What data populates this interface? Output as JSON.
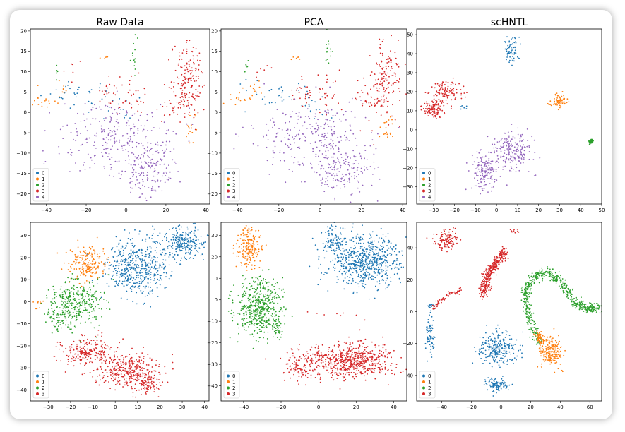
{
  "figure": {
    "colors": [
      "#1f77b4",
      "#ff7f0e",
      "#2ca02c",
      "#d62728",
      "#9467bd"
    ]
  },
  "chart_data": [
    {
      "type": "scatter",
      "title": "Raw Data",
      "xlim": [
        -48,
        42
      ],
      "ylim": [
        -22.5,
        20.5
      ],
      "xticks": [
        -40,
        -20,
        0,
        20,
        40
      ],
      "yticks": [
        -20,
        -15,
        -10,
        -5,
        0,
        5,
        10,
        15,
        20
      ],
      "legend": {
        "position": "lower-left",
        "labels": [
          "0",
          "1",
          "2",
          "3",
          "4"
        ]
      },
      "clusters": [
        {
          "label": "0",
          "cx": -22,
          "cy": 4,
          "sx": 11,
          "sy": 1.8,
          "n": 35
        },
        {
          "label": "0",
          "cx": -4,
          "cy": 1,
          "sx": 5,
          "sy": 1.5,
          "n": 15
        },
        {
          "label": "1",
          "cx": -42,
          "cy": 3,
          "sx": 4,
          "sy": 1.2,
          "n": 18
        },
        {
          "label": "1",
          "cx": -32,
          "cy": 6,
          "sx": 1.5,
          "sy": 1.2,
          "n": 8
        },
        {
          "label": "1",
          "cx": -11,
          "cy": 13.5,
          "sx": 1.2,
          "sy": 0.4,
          "n": 6
        },
        {
          "label": "1",
          "cx": 33,
          "cy": -4,
          "sx": 2,
          "sy": 1.5,
          "n": 18
        },
        {
          "label": "2",
          "cx": 4,
          "cy": 15.5,
          "sx": 0.8,
          "sy": 2.5,
          "n": 14
        },
        {
          "label": "2",
          "cx": -35,
          "cy": 11,
          "sx": 0.7,
          "sy": 1.2,
          "n": 6
        },
        {
          "label": "3",
          "cx": 31,
          "cy": 8,
          "sx": 4,
          "sy": 5,
          "n": 170
        },
        {
          "label": "3",
          "cx": -8,
          "cy": 5,
          "sx": 3,
          "sy": 2,
          "n": 25
        },
        {
          "label": "3",
          "cx": 4,
          "cy": 4,
          "sx": 3,
          "sy": 2.5,
          "n": 25
        },
        {
          "label": "3",
          "cx": 22,
          "cy": 2,
          "sx": 3,
          "sy": 2.5,
          "n": 20
        },
        {
          "label": "3",
          "cx": -27,
          "cy": 11,
          "sx": 2,
          "sy": 1.2,
          "n": 6
        },
        {
          "label": "4",
          "cx": -5,
          "cy": -6,
          "sx": 15,
          "sy": 4,
          "n": 260
        },
        {
          "label": "4",
          "cx": 10,
          "cy": -14,
          "sx": 7,
          "sy": 3,
          "n": 170
        }
      ]
    },
    {
      "type": "scatter",
      "title": "PCA",
      "xlim": [
        -48,
        42
      ],
      "ylim": [
        -22.5,
        20.5
      ],
      "xticks": [
        -40,
        -20,
        0,
        20,
        40
      ],
      "yticks": [
        -20,
        -15,
        -10,
        -5,
        0,
        5,
        10,
        15,
        20
      ],
      "legend": {
        "position": "lower-left",
        "labels": [
          "0",
          "1",
          "2",
          "3",
          "4"
        ]
      },
      "clusters": [
        {
          "label": "0",
          "cx": -22,
          "cy": 4,
          "sx": 11,
          "sy": 1.8,
          "n": 35
        },
        {
          "label": "0",
          "cx": -4,
          "cy": 1,
          "sx": 5,
          "sy": 1.5,
          "n": 15
        },
        {
          "label": "1",
          "cx": -42,
          "cy": 3,
          "sx": 4,
          "sy": 1.2,
          "n": 18
        },
        {
          "label": "1",
          "cx": -32,
          "cy": 6,
          "sx": 1.5,
          "sy": 1.2,
          "n": 8
        },
        {
          "label": "1",
          "cx": -11,
          "cy": 13.5,
          "sx": 1.2,
          "sy": 0.4,
          "n": 6
        },
        {
          "label": "1",
          "cx": 33,
          "cy": -4,
          "sx": 2,
          "sy": 1.5,
          "n": 18
        },
        {
          "label": "2",
          "cx": 4,
          "cy": 15.5,
          "sx": 0.8,
          "sy": 2.5,
          "n": 14
        },
        {
          "label": "2",
          "cx": -35,
          "cy": 11,
          "sx": 0.7,
          "sy": 1.2,
          "n": 6
        },
        {
          "label": "3",
          "cx": 31,
          "cy": 8,
          "sx": 4,
          "sy": 5,
          "n": 170
        },
        {
          "label": "3",
          "cx": -8,
          "cy": 5,
          "sx": 3,
          "sy": 2,
          "n": 25
        },
        {
          "label": "3",
          "cx": 4,
          "cy": 4,
          "sx": 3,
          "sy": 2.5,
          "n": 25
        },
        {
          "label": "3",
          "cx": 22,
          "cy": 2,
          "sx": 3,
          "sy": 2.5,
          "n": 20
        },
        {
          "label": "3",
          "cx": -27,
          "cy": 11,
          "sx": 2,
          "sy": 1.2,
          "n": 6
        },
        {
          "label": "4",
          "cx": -5,
          "cy": -6,
          "sx": 15,
          "sy": 4,
          "n": 260
        },
        {
          "label": "4",
          "cx": 10,
          "cy": -14,
          "sx": 7,
          "sy": 3,
          "n": 170
        }
      ]
    },
    {
      "type": "scatter",
      "title": "scHNTL",
      "xlim": [
        -38,
        50
      ],
      "ylim": [
        -39,
        53
      ],
      "xticks": [
        -30,
        -20,
        -10,
        0,
        10,
        20,
        30,
        40,
        50
      ],
      "yticks": [
        -30,
        -20,
        -10,
        0,
        10,
        20,
        30,
        40,
        50
      ],
      "legend": {
        "position": "lower-left",
        "labels": [
          "0",
          "1",
          "2",
          "3",
          "4"
        ]
      },
      "clusters": [
        {
          "label": "0",
          "cx": 7,
          "cy": 42,
          "sx": 1.8,
          "sy": 3.5,
          "n": 70
        },
        {
          "label": "0",
          "cx": -16,
          "cy": 12,
          "sx": 1,
          "sy": 0.8,
          "n": 6
        },
        {
          "label": "1",
          "cx": 30,
          "cy": 15,
          "sx": 1.8,
          "sy": 2,
          "n": 70
        },
        {
          "label": "1",
          "cx": 26,
          "cy": 13,
          "sx": 0.8,
          "sy": 0.5,
          "n": 6
        },
        {
          "label": "2",
          "cx": 45,
          "cy": -6,
          "sx": 0.5,
          "sy": 0.6,
          "n": 50
        },
        {
          "label": "3",
          "cx": -24,
          "cy": 20,
          "sx": 4,
          "sy": 2.8,
          "n": 110
        },
        {
          "label": "3",
          "cx": -30,
          "cy": 11,
          "sx": 3,
          "sy": 2.5,
          "n": 110
        },
        {
          "label": "4",
          "cx": 8,
          "cy": -12,
          "sx": 4.5,
          "sy": 5,
          "n": 200
        },
        {
          "label": "4",
          "cx": -5,
          "cy": -22,
          "sx": 3.2,
          "sy": 5.5,
          "n": 160
        }
      ]
    },
    {
      "type": "scatter",
      "title": "",
      "xlim": [
        -38,
        42
      ],
      "ylim": [
        -45,
        36
      ],
      "xticks": [
        -30,
        -20,
        -10,
        0,
        10,
        20,
        30,
        40
      ],
      "yticks": [
        -40,
        -30,
        -20,
        -10,
        0,
        10,
        20,
        30
      ],
      "legend": {
        "position": "lower-left",
        "labels": [
          "0",
          "1",
          "2",
          "3"
        ]
      },
      "clusters": [
        {
          "label": "0",
          "cx": 31,
          "cy": 27,
          "sx": 5,
          "sy": 3.5,
          "n": 250
        },
        {
          "label": "0",
          "cx": 10,
          "cy": 16,
          "sx": 7,
          "sy": 6.5,
          "n": 500
        },
        {
          "label": "1",
          "cx": -13,
          "cy": 17,
          "sx": 4,
          "sy": 4,
          "n": 200
        },
        {
          "label": "1",
          "cx": -34,
          "cy": -1,
          "sx": 1.5,
          "sy": 1.5,
          "n": 10
        },
        {
          "label": "2",
          "cx": -17,
          "cy": 0,
          "sx": 6,
          "sy": 5,
          "n": 320
        },
        {
          "label": "2",
          "cx": -25,
          "cy": -8,
          "sx": 3,
          "sy": 3,
          "n": 60
        },
        {
          "label": "3",
          "cx": -12,
          "cy": -23,
          "sx": 6,
          "sy": 3.5,
          "n": 230
        },
        {
          "label": "3",
          "cx": 6,
          "cy": -31,
          "sx": 7,
          "sy": 4,
          "n": 340
        },
        {
          "label": "3",
          "cx": 14,
          "cy": -38,
          "sx": 3,
          "sy": 2.5,
          "n": 80
        }
      ]
    },
    {
      "type": "scatter",
      "title": "",
      "xlim": [
        -52,
        47
      ],
      "ylim": [
        -47,
        36
      ],
      "xticks": [
        -40,
        -20,
        0,
        20,
        40
      ],
      "yticks": [
        -40,
        -30,
        -20,
        -10,
        0,
        10,
        20,
        30
      ],
      "legend": {
        "position": "lower-left",
        "labels": [
          "0",
          "1",
          "2",
          "3"
        ]
      },
      "clusters": [
        {
          "label": "0",
          "cx": 25,
          "cy": 18,
          "sx": 10,
          "sy": 6,
          "n": 650
        },
        {
          "label": "0",
          "cx": 8,
          "cy": 28,
          "sx": 3,
          "sy": 3,
          "n": 80
        },
        {
          "label": "1",
          "cx": -37,
          "cy": 24,
          "sx": 3.5,
          "sy": 4.5,
          "n": 200
        },
        {
          "label": "2",
          "cx": -32,
          "cy": -3,
          "sx": 6,
          "sy": 6.5,
          "n": 500
        },
        {
          "label": "2",
          "cx": -22,
          "cy": -13,
          "sx": 2,
          "sy": 2.5,
          "n": 40
        },
        {
          "label": "3",
          "cx": 15,
          "cy": -28,
          "sx": 12,
          "sy": 4,
          "n": 650
        },
        {
          "label": "3",
          "cx": -10,
          "cy": -32,
          "sx": 4,
          "sy": 3,
          "n": 80
        },
        {
          "label": "3",
          "cx": 10,
          "cy": -6,
          "sx": 8,
          "sy": 1,
          "n": 8
        }
      ]
    },
    {
      "type": "scatter",
      "title": "",
      "xlim": [
        -57,
        68
      ],
      "ylim": [
        -56,
        56
      ],
      "xticks": [
        -40,
        -20,
        0,
        20,
        40,
        60
      ],
      "yticks": [
        -40,
        -20,
        0,
        20,
        40
      ],
      "legend": {
        "position": "lower-left",
        "labels": [
          "0",
          "1",
          "2",
          "3"
        ]
      },
      "clusters": [
        {
          "label": "0",
          "cx": -3,
          "cy": -23,
          "sx": 6,
          "sy": 5,
          "n": 260
        },
        {
          "label": "0",
          "cx": -3,
          "cy": -46,
          "sx": 4,
          "sy": 2.5,
          "n": 110
        },
        {
          "label": "0",
          "cx": -48,
          "cy": -16,
          "sx": 1.5,
          "sy": 5,
          "n": 70
        },
        {
          "label": "0",
          "cx": -47,
          "cy": 3,
          "sx": 1.5,
          "sy": 2,
          "n": 20
        },
        {
          "label": "3",
          "cx": -37,
          "cy": 45,
          "sx": 4,
          "sy": 3,
          "n": 120
        },
        {
          "label": "3",
          "cx": 9,
          "cy": 51,
          "sx": 2,
          "sy": 0.7,
          "n": 10
        },
        {
          "label": "1",
          "cx": 34,
          "cy": -25,
          "sx": 3.5,
          "sy": 4.5,
          "n": 210
        }
      ],
      "curves": [
        {
          "label": "3",
          "n": 330,
          "spread": 1.6,
          "path": [
            [
              -12,
              10
            ],
            [
              -10,
              22
            ],
            [
              -4,
              30
            ],
            [
              3,
              38
            ]
          ]
        },
        {
          "label": "3",
          "n": 60,
          "spread": 1.0,
          "path": [
            [
              -45,
              3
            ],
            [
              -38,
              9
            ],
            [
              -27,
              14
            ]
          ]
        },
        {
          "label": "2",
          "n": 560,
          "spread": 1.6,
          "path": [
            [
              26,
              -20
            ],
            [
              18,
              -2
            ],
            [
              16,
              12
            ],
            [
              22,
              22
            ],
            [
              32,
              25
            ],
            [
              42,
              17
            ],
            [
              50,
              6
            ],
            [
              58,
              2
            ],
            [
              66,
              2
            ]
          ]
        },
        {
          "label": "1",
          "n": 60,
          "spread": 1.2,
          "path": [
            [
              25,
              -14
            ],
            [
              28,
              -20
            ]
          ]
        }
      ]
    }
  ]
}
